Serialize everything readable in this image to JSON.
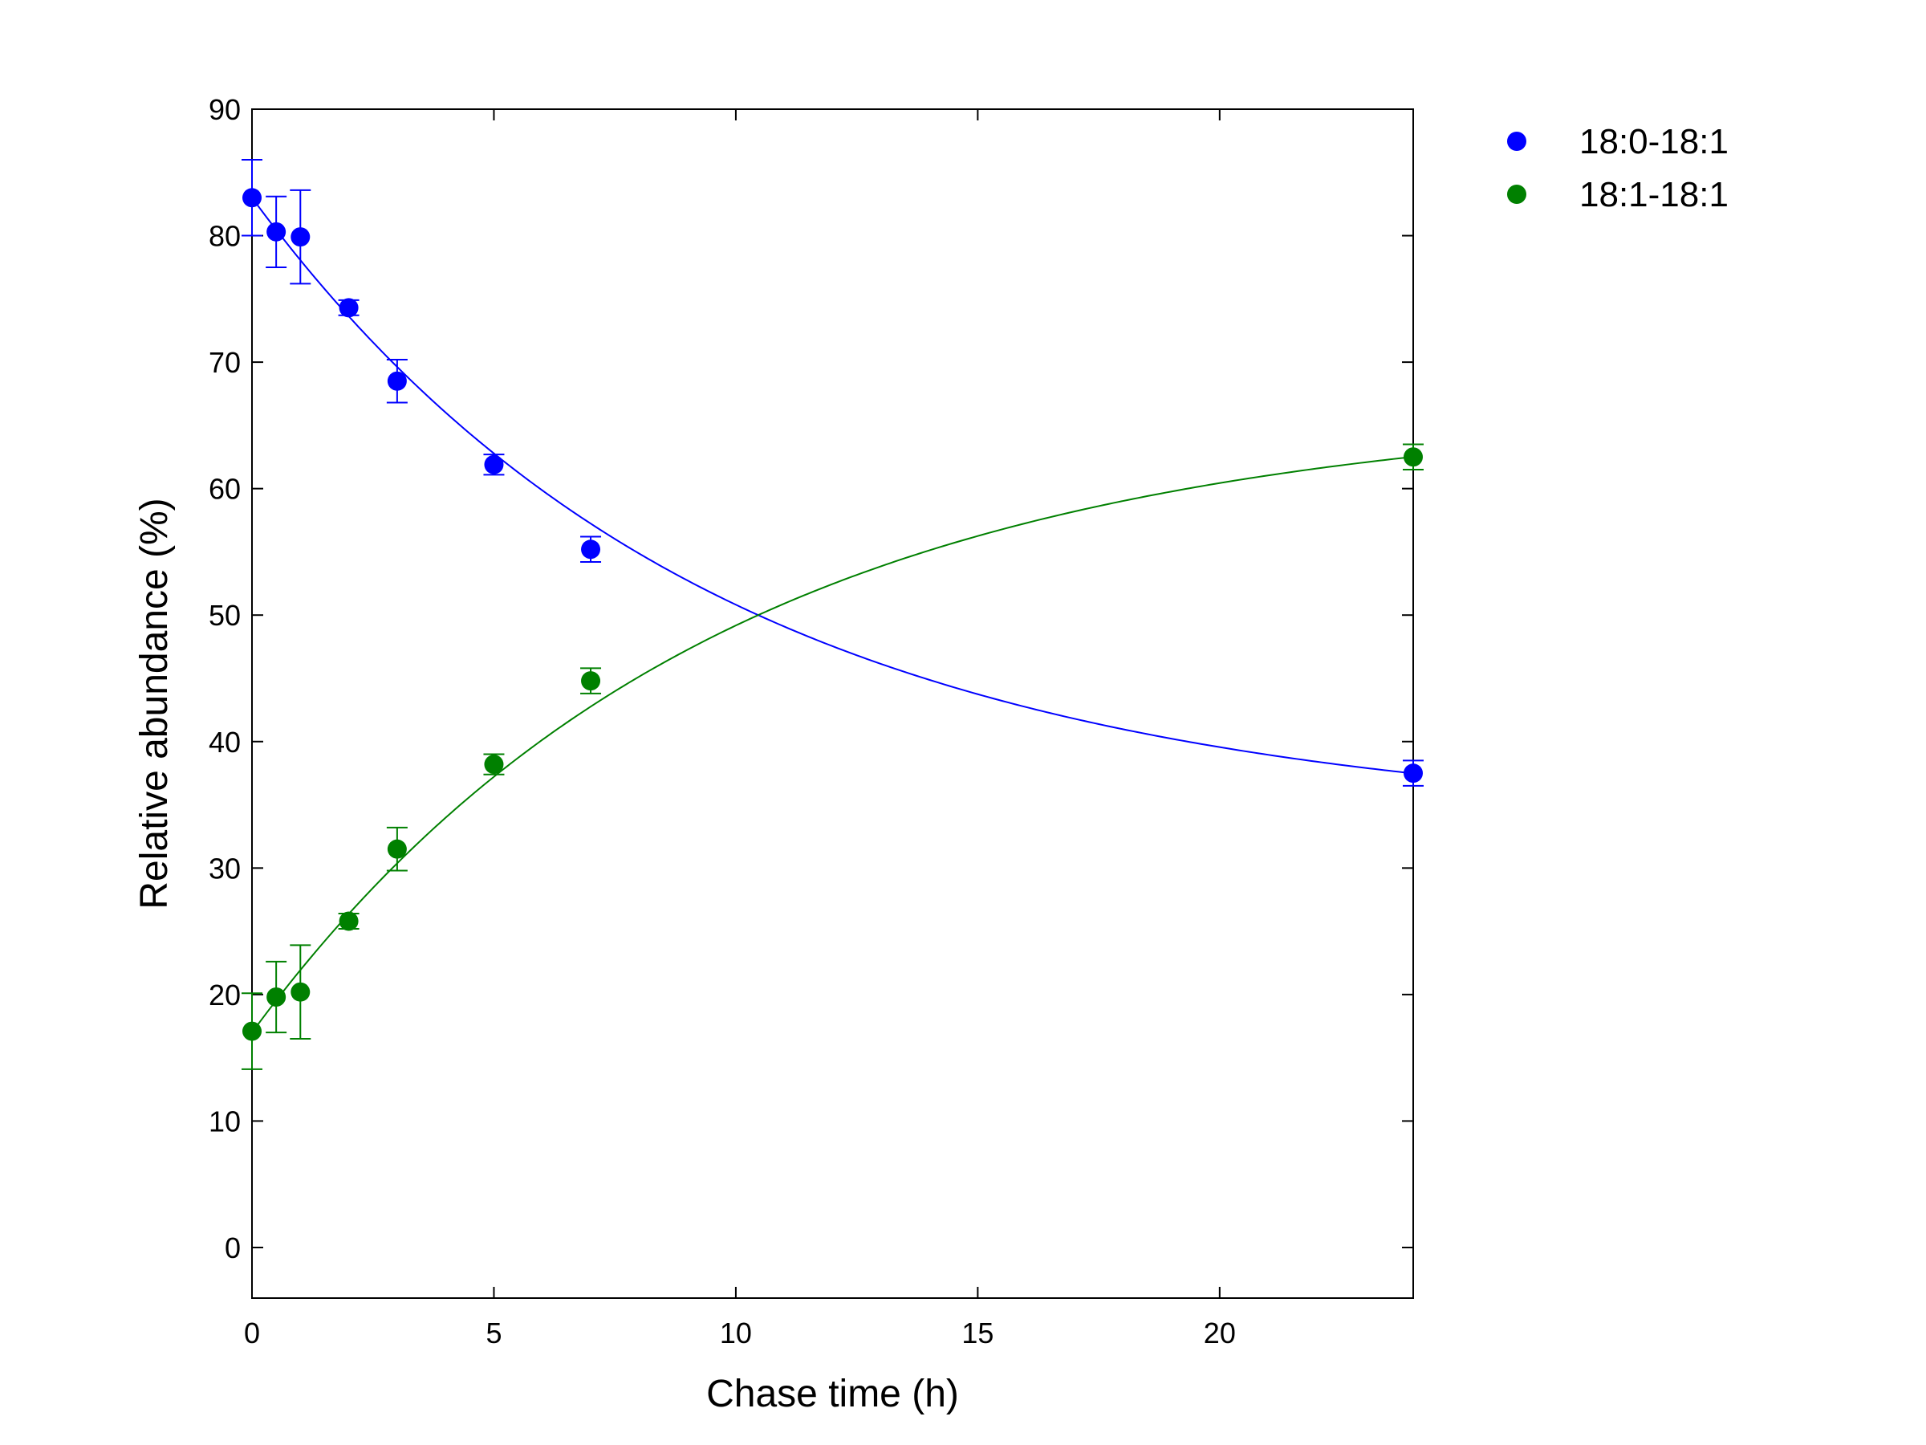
{
  "chart_data": {
    "type": "scatter",
    "xlabel": "Chase time (h)",
    "ylabel": "Relative abundance (%)",
    "xlim": [
      0,
      24
    ],
    "ylim": [
      -4,
      90
    ],
    "xticks": [
      0,
      5,
      10,
      15,
      20
    ],
    "yticks": [
      0,
      10,
      20,
      30,
      40,
      50,
      60,
      70,
      80,
      90
    ],
    "grid": false,
    "legend_position": "top-right, outside plot",
    "fit_curves": true,
    "series": [
      {
        "name": "18:0-18:1",
        "color": "#0000ff",
        "x": [
          0,
          0.5,
          1,
          2,
          3,
          5,
          7,
          24
        ],
        "y": [
          83.0,
          80.3,
          79.9,
          74.3,
          68.5,
          61.9,
          55.2,
          37.5
        ],
        "error": [
          3.0,
          2.8,
          3.7,
          0.6,
          1.7,
          0.8,
          1.0,
          1.0
        ],
        "fit": {
          "form": "exponential decay",
          "start": 83.0,
          "plateau": 33.5,
          "rate": 0.105
        }
      },
      {
        "name": "18:1-18:1",
        "color": "#008000",
        "x": [
          0,
          0.5,
          1,
          2,
          3,
          5,
          7,
          24
        ],
        "y": [
          17.1,
          19.8,
          20.2,
          25.8,
          31.5,
          38.2,
          44.8,
          62.5
        ],
        "error": [
          3.0,
          2.8,
          3.7,
          0.6,
          1.7,
          0.8,
          1.0,
          1.0
        ],
        "fit": {
          "form": "exponential rise",
          "start": 17.0,
          "plateau": 66.5,
          "rate": 0.105
        }
      }
    ]
  }
}
